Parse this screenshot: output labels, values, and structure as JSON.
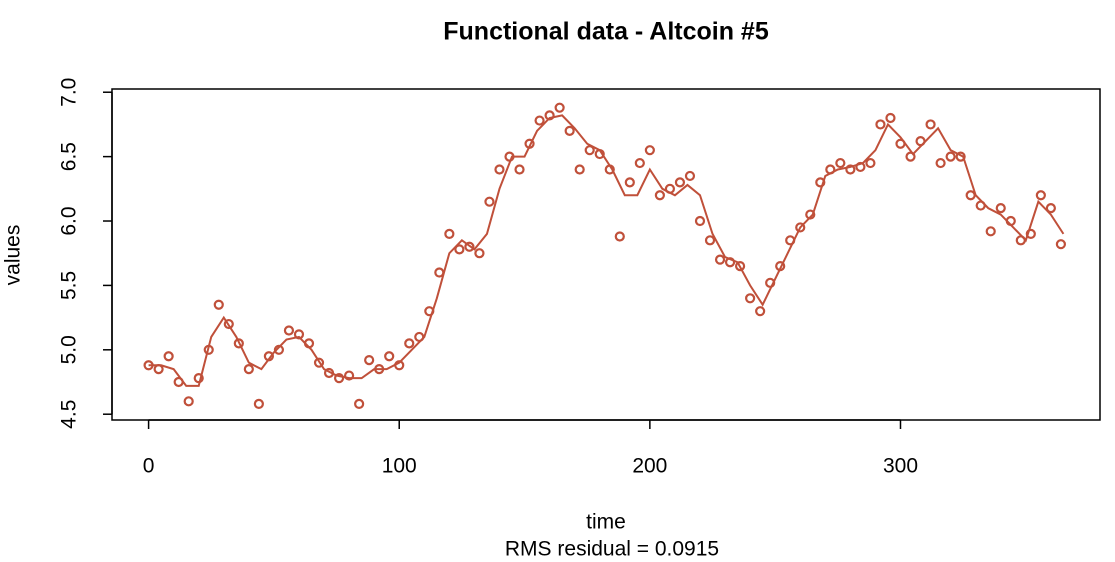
{
  "chart_data": {
    "type": "scatter",
    "title": "Functional data - Altcoin #5",
    "x_label": "time",
    "y_label": "values",
    "annotation": "RMS residual = 0.0915",
    "xlim": [
      -14.6,
      379.6
    ],
    "ylim": [
      4.455,
      7.025
    ],
    "xticks": [
      0,
      100,
      200,
      300
    ],
    "yticks": [
      4.5,
      {
        "value": 5,
        "label": "5.0"
      },
      5.5,
      {
        "value": 6,
        "label": "6.0"
      },
      6.5,
      {
        "value": 7,
        "label": "7.0"
      }
    ],
    "grid": false,
    "series": [
      {
        "mode": "markers",
        "color": "#c0503a",
        "x": [
          0,
          4,
          8,
          12,
          16,
          20,
          24,
          28,
          32,
          36,
          40,
          44,
          48,
          52,
          56,
          60,
          64,
          68,
          72,
          76,
          80,
          84,
          88,
          92,
          96,
          100,
          104,
          108,
          112,
          116,
          120,
          124,
          128,
          132,
          136,
          140,
          144,
          148,
          152,
          156,
          160,
          164,
          168,
          172,
          176,
          180,
          184,
          188,
          192,
          196,
          200,
          204,
          208,
          212,
          216,
          220,
          224,
          228,
          232,
          236,
          240,
          244,
          248,
          252,
          256,
          260,
          264,
          268,
          272,
          276,
          280,
          284,
          288,
          292,
          296,
          300,
          304,
          308,
          312,
          316,
          320,
          324,
          328,
          332,
          336,
          340,
          344,
          348,
          352,
          356,
          360,
          364
        ],
        "values": [
          4.88,
          4.85,
          4.95,
          4.75,
          4.6,
          4.78,
          5.0,
          5.35,
          5.2,
          5.05,
          4.85,
          4.58,
          4.95,
          5.0,
          5.15,
          5.12,
          5.05,
          4.9,
          4.82,
          4.78,
          4.8,
          4.58,
          4.92,
          4.85,
          4.95,
          4.88,
          5.05,
          5.1,
          5.3,
          5.6,
          5.9,
          5.78,
          5.8,
          5.75,
          6.15,
          6.4,
          6.5,
          6.4,
          6.6,
          6.78,
          6.82,
          6.88,
          6.7,
          6.4,
          6.55,
          6.52,
          6.4,
          5.88,
          6.3,
          6.45,
          6.55,
          6.2,
          6.25,
          6.3,
          6.35,
          6.0,
          5.85,
          5.7,
          5.68,
          5.65,
          5.4,
          5.3,
          5.52,
          5.65,
          5.85,
          5.95,
          6.05,
          6.3,
          6.4,
          6.45,
          6.4,
          6.42,
          6.45,
          6.75,
          6.8,
          6.6,
          6.5,
          6.62,
          6.75,
          6.45,
          6.5,
          6.5,
          6.2,
          6.12,
          5.92,
          6.1,
          6.0,
          5.85,
          5.9,
          6.2,
          6.1,
          5.82
        ]
      },
      {
        "mode": "line",
        "color": "#c0503a",
        "x": [
          0,
          5,
          10,
          15,
          20,
          25,
          30,
          35,
          40,
          45,
          50,
          55,
          60,
          65,
          70,
          75,
          80,
          85,
          90,
          95,
          100,
          105,
          110,
          115,
          120,
          125,
          130,
          135,
          140,
          145,
          150,
          155,
          160,
          165,
          170,
          175,
          180,
          185,
          190,
          195,
          200,
          205,
          210,
          215,
          220,
          225,
          230,
          235,
          240,
          245,
          250,
          255,
          260,
          265,
          270,
          275,
          280,
          285,
          290,
          295,
          300,
          305,
          310,
          315,
          320,
          325,
          330,
          335,
          340,
          345,
          350,
          355,
          360,
          365
        ],
        "values": [
          4.88,
          4.88,
          4.85,
          4.72,
          4.72,
          5.1,
          5.25,
          5.1,
          4.9,
          4.85,
          4.98,
          5.08,
          5.1,
          5.0,
          4.85,
          4.8,
          4.78,
          4.78,
          4.85,
          4.85,
          4.9,
          5.0,
          5.1,
          5.4,
          5.75,
          5.85,
          5.78,
          5.9,
          6.25,
          6.5,
          6.5,
          6.7,
          6.8,
          6.82,
          6.72,
          6.6,
          6.55,
          6.4,
          6.2,
          6.2,
          6.4,
          6.25,
          6.2,
          6.28,
          6.2,
          5.9,
          5.72,
          5.68,
          5.5,
          5.35,
          5.55,
          5.75,
          5.95,
          6.05,
          6.35,
          6.4,
          6.42,
          6.45,
          6.55,
          6.75,
          6.65,
          6.52,
          6.62,
          6.72,
          6.55,
          6.5,
          6.2,
          6.1,
          6.05,
          5.95,
          5.85,
          6.15,
          6.05,
          5.9
        ]
      }
    ]
  }
}
